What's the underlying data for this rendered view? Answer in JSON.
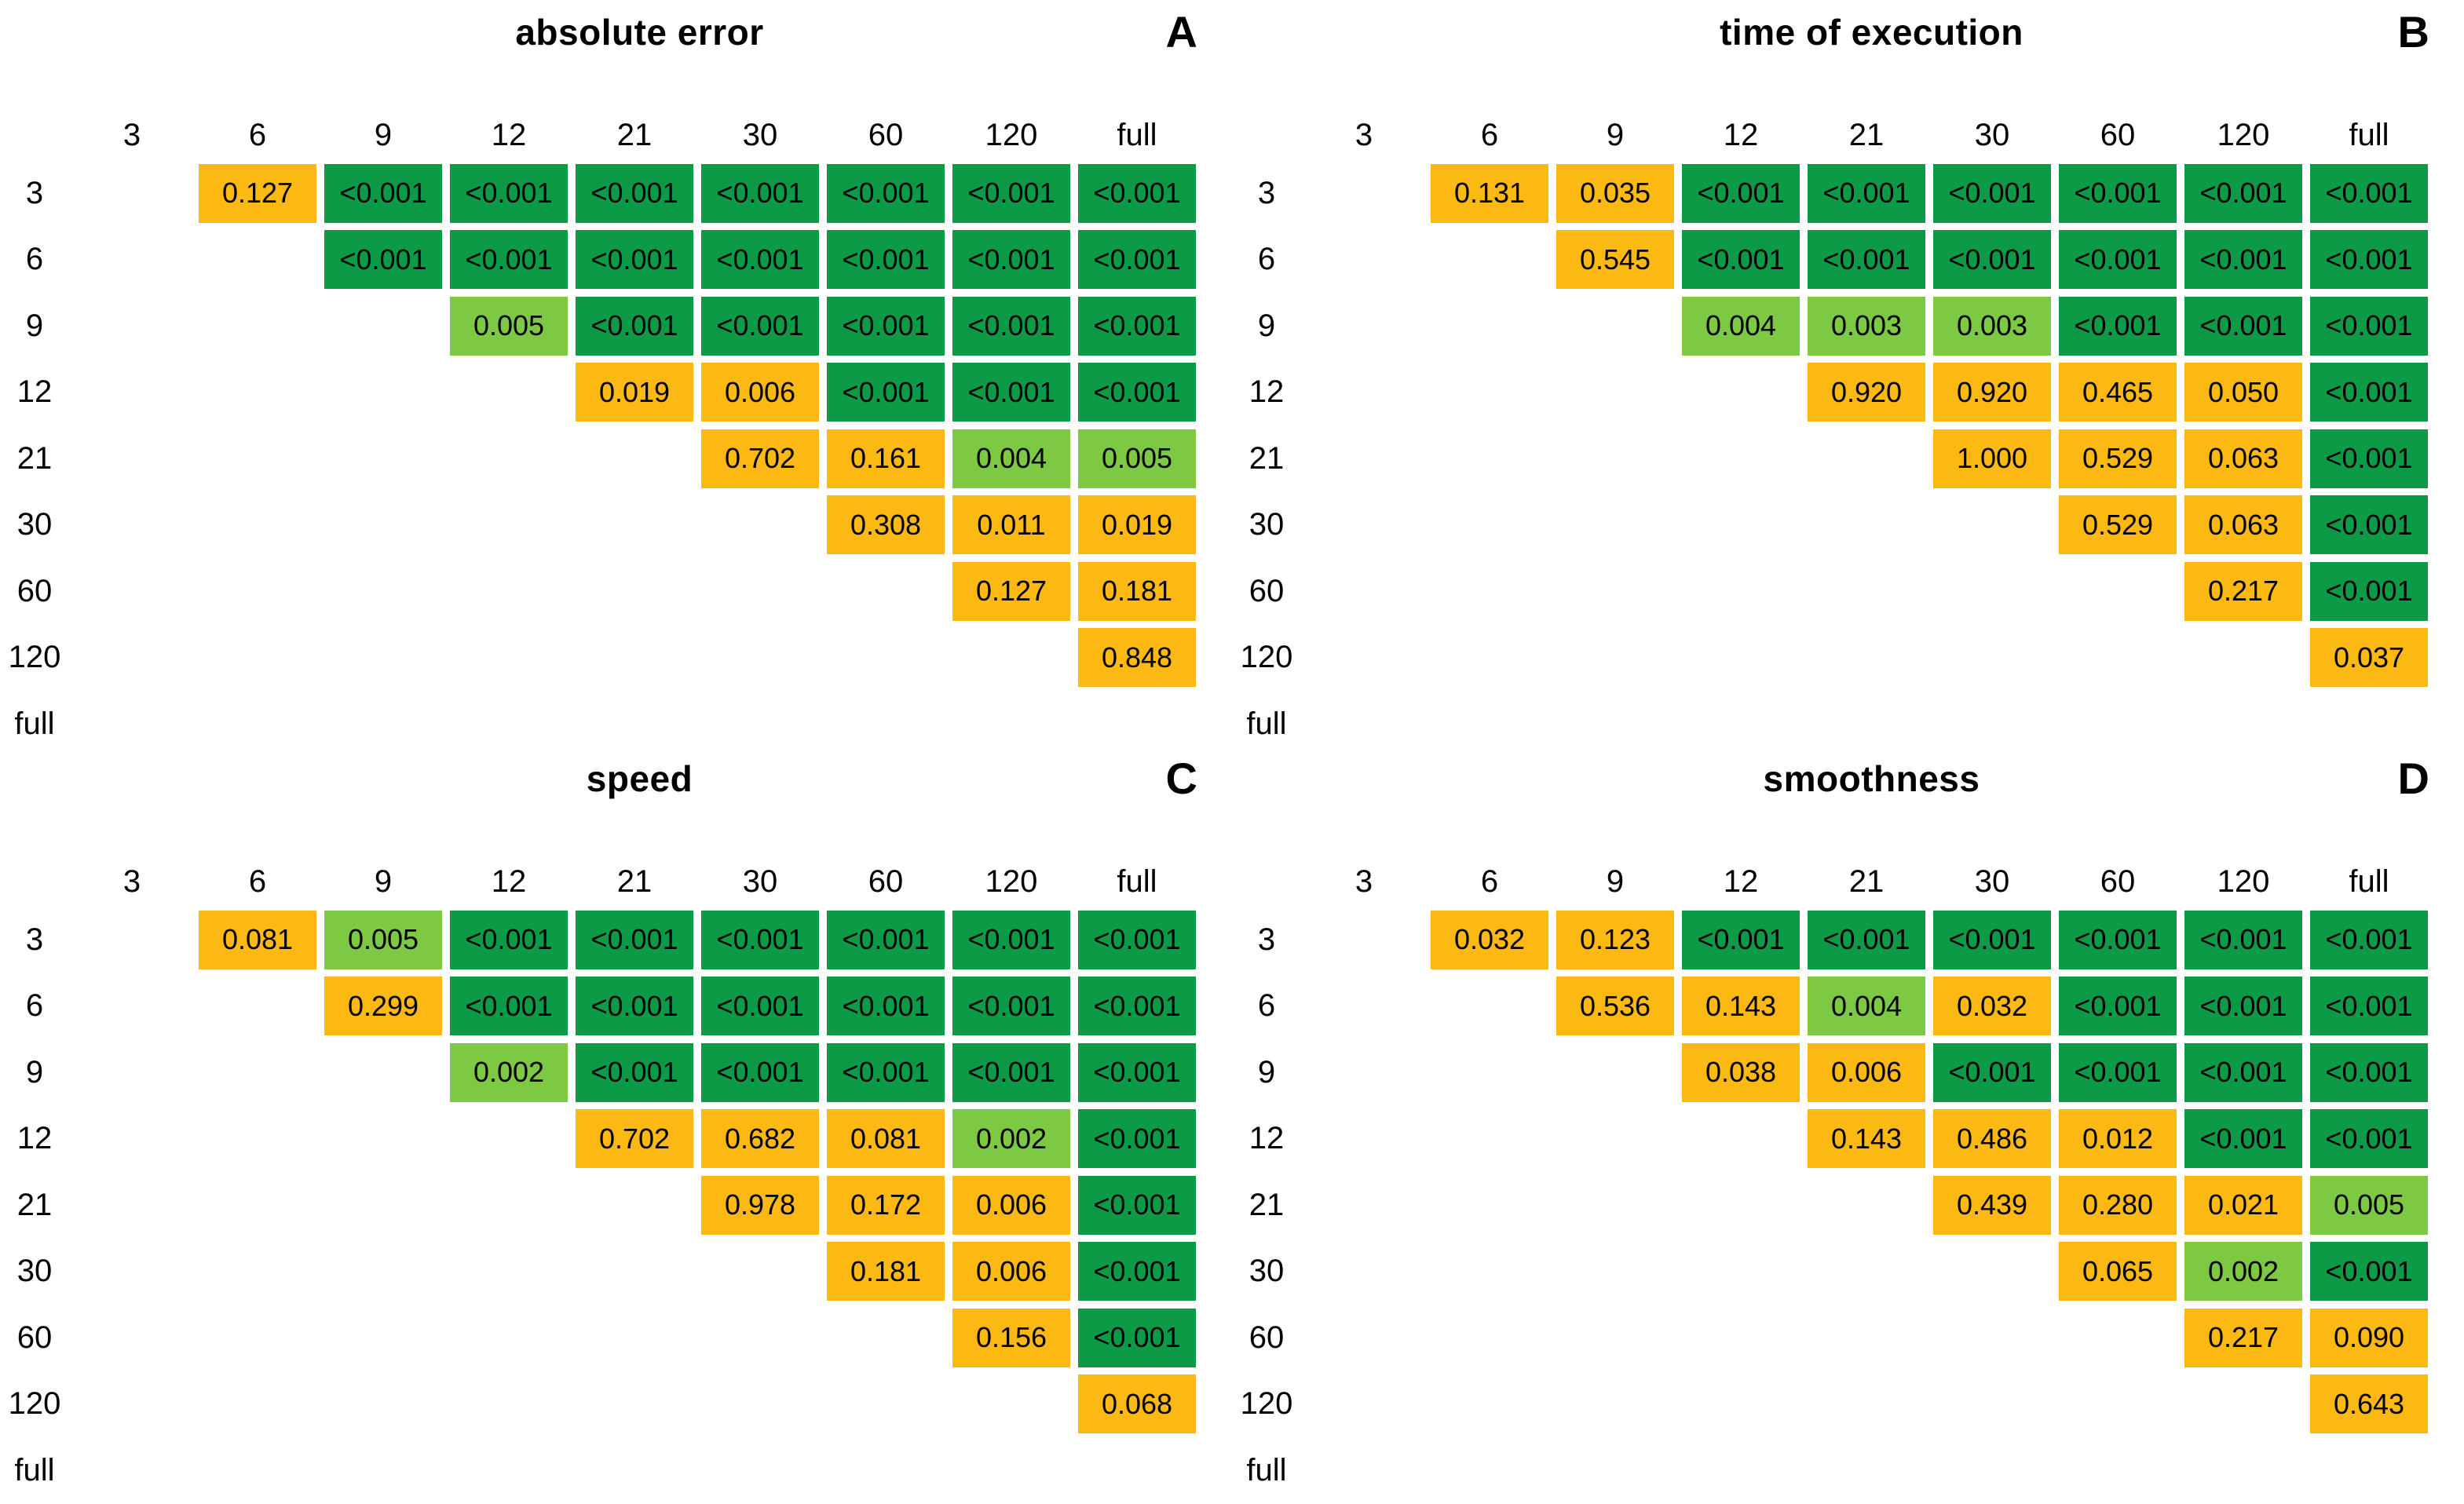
{
  "palette": {
    "d": "#0C9A47",
    "l": "#7DC943",
    "o": "#FCB813"
  },
  "chart_data": [
    {
      "type": "heatmap",
      "panel_letter": "A",
      "title": "absolute error",
      "categories": [
        "3",
        "6",
        "9",
        "12",
        "21",
        "30",
        "60",
        "120",
        "full"
      ],
      "rows": [
        {
          "label": "3",
          "p": [
            "0.127",
            "<0.001",
            "<0.001",
            "<0.001",
            "<0.001",
            "<0.001",
            "<0.001",
            "<0.001"
          ],
          "c": [
            "o",
            "d",
            "d",
            "d",
            "d",
            "d",
            "d",
            "d"
          ]
        },
        {
          "label": "6",
          "p": [
            "<0.001",
            "<0.001",
            "<0.001",
            "<0.001",
            "<0.001",
            "<0.001",
            "<0.001"
          ],
          "c": [
            "d",
            "d",
            "d",
            "d",
            "d",
            "d",
            "d"
          ]
        },
        {
          "label": "9",
          "p": [
            "0.005",
            "<0.001",
            "<0.001",
            "<0.001",
            "<0.001",
            "<0.001"
          ],
          "c": [
            "l",
            "d",
            "d",
            "d",
            "d",
            "d"
          ]
        },
        {
          "label": "12",
          "p": [
            "0.019",
            "0.006",
            "<0.001",
            "<0.001",
            "<0.001"
          ],
          "c": [
            "o",
            "o",
            "d",
            "d",
            "d"
          ]
        },
        {
          "label": "21",
          "p": [
            "0.702",
            "0.161",
            "0.004",
            "0.005"
          ],
          "c": [
            "o",
            "o",
            "l",
            "l"
          ]
        },
        {
          "label": "30",
          "p": [
            "0.308",
            "0.011",
            "0.019"
          ],
          "c": [
            "o",
            "o",
            "o"
          ]
        },
        {
          "label": "60",
          "p": [
            "0.127",
            "0.181"
          ],
          "c": [
            "o",
            "o"
          ]
        },
        {
          "label": "120",
          "p": [
            "0.848"
          ],
          "c": [
            "o"
          ]
        },
        {
          "label": "full",
          "p": [],
          "c": []
        }
      ]
    },
    {
      "type": "heatmap",
      "panel_letter": "B",
      "title": "time of execution",
      "categories": [
        "3",
        "6",
        "9",
        "12",
        "21",
        "30",
        "60",
        "120",
        "full"
      ],
      "rows": [
        {
          "label": "3",
          "p": [
            "0.131",
            "0.035",
            "<0.001",
            "<0.001",
            "<0.001",
            "<0.001",
            "<0.001",
            "<0.001"
          ],
          "c": [
            "o",
            "o",
            "d",
            "d",
            "d",
            "d",
            "d",
            "d"
          ]
        },
        {
          "label": "6",
          "p": [
            "0.545",
            "<0.001",
            "<0.001",
            "<0.001",
            "<0.001",
            "<0.001",
            "<0.001"
          ],
          "c": [
            "o",
            "d",
            "d",
            "d",
            "d",
            "d",
            "d"
          ]
        },
        {
          "label": "9",
          "p": [
            "0.004",
            "0.003",
            "0.003",
            "<0.001",
            "<0.001",
            "<0.001"
          ],
          "c": [
            "l",
            "l",
            "l",
            "d",
            "d",
            "d"
          ]
        },
        {
          "label": "12",
          "p": [
            "0.920",
            "0.920",
            "0.465",
            "0.050",
            "<0.001"
          ],
          "c": [
            "o",
            "o",
            "o",
            "o",
            "d"
          ]
        },
        {
          "label": "21",
          "p": [
            "1.000",
            "0.529",
            "0.063",
            "<0.001"
          ],
          "c": [
            "o",
            "o",
            "o",
            "d"
          ]
        },
        {
          "label": "30",
          "p": [
            "0.529",
            "0.063",
            "<0.001"
          ],
          "c": [
            "o",
            "o",
            "d"
          ]
        },
        {
          "label": "60",
          "p": [
            "0.217",
            "<0.001"
          ],
          "c": [
            "o",
            "d"
          ]
        },
        {
          "label": "120",
          "p": [
            "0.037"
          ],
          "c": [
            "o"
          ]
        },
        {
          "label": "full",
          "p": [],
          "c": []
        }
      ]
    },
    {
      "type": "heatmap",
      "panel_letter": "C",
      "title": "speed",
      "categories": [
        "3",
        "6",
        "9",
        "12",
        "21",
        "30",
        "60",
        "120",
        "full"
      ],
      "rows": [
        {
          "label": "3",
          "p": [
            "0.081",
            "0.005",
            "<0.001",
            "<0.001",
            "<0.001",
            "<0.001",
            "<0.001",
            "<0.001"
          ],
          "c": [
            "o",
            "l",
            "d",
            "d",
            "d",
            "d",
            "d",
            "d"
          ]
        },
        {
          "label": "6",
          "p": [
            "0.299",
            "<0.001",
            "<0.001",
            "<0.001",
            "<0.001",
            "<0.001",
            "<0.001"
          ],
          "c": [
            "o",
            "d",
            "d",
            "d",
            "d",
            "d",
            "d"
          ]
        },
        {
          "label": "9",
          "p": [
            "0.002",
            "<0.001",
            "<0.001",
            "<0.001",
            "<0.001",
            "<0.001"
          ],
          "c": [
            "l",
            "d",
            "d",
            "d",
            "d",
            "d"
          ]
        },
        {
          "label": "12",
          "p": [
            "0.702",
            "0.682",
            "0.081",
            "0.002",
            "<0.001"
          ],
          "c": [
            "o",
            "o",
            "o",
            "l",
            "d"
          ]
        },
        {
          "label": "21",
          "p": [
            "0.978",
            "0.172",
            "0.006",
            "<0.001"
          ],
          "c": [
            "o",
            "o",
            "o",
            "d"
          ]
        },
        {
          "label": "30",
          "p": [
            "0.181",
            "0.006",
            "<0.001"
          ],
          "c": [
            "o",
            "o",
            "d"
          ]
        },
        {
          "label": "60",
          "p": [
            "0.156",
            "<0.001"
          ],
          "c": [
            "o",
            "d"
          ]
        },
        {
          "label": "120",
          "p": [
            "0.068"
          ],
          "c": [
            "o"
          ]
        },
        {
          "label": "full",
          "p": [],
          "c": []
        }
      ]
    },
    {
      "type": "heatmap",
      "panel_letter": "D",
      "title": "smoothness",
      "categories": [
        "3",
        "6",
        "9",
        "12",
        "21",
        "30",
        "60",
        "120",
        "full"
      ],
      "rows": [
        {
          "label": "3",
          "p": [
            "0.032",
            "0.123",
            "<0.001",
            "<0.001",
            "<0.001",
            "<0.001",
            "<0.001",
            "<0.001"
          ],
          "c": [
            "o",
            "o",
            "d",
            "d",
            "d",
            "d",
            "d",
            "d"
          ]
        },
        {
          "label": "6",
          "p": [
            "0.536",
            "0.143",
            "0.004",
            "0.032",
            "<0.001",
            "<0.001",
            "<0.001"
          ],
          "c": [
            "o",
            "o",
            "l",
            "o",
            "d",
            "d",
            "d"
          ]
        },
        {
          "label": "9",
          "p": [
            "0.038",
            "0.006",
            "<0.001",
            "<0.001",
            "<0.001",
            "<0.001"
          ],
          "c": [
            "o",
            "o",
            "d",
            "d",
            "d",
            "d"
          ]
        },
        {
          "label": "12",
          "p": [
            "0.143",
            "0.486",
            "0.012",
            "<0.001",
            "<0.001"
          ],
          "c": [
            "o",
            "o",
            "o",
            "d",
            "d"
          ]
        },
        {
          "label": "21",
          "p": [
            "0.439",
            "0.280",
            "0.021",
            "0.005"
          ],
          "c": [
            "o",
            "o",
            "o",
            "l"
          ]
        },
        {
          "label": "30",
          "p": [
            "0.065",
            "0.002",
            "<0.001"
          ],
          "c": [
            "o",
            "l",
            "d"
          ]
        },
        {
          "label": "60",
          "p": [
            "0.217",
            "0.090"
          ],
          "c": [
            "o",
            "o"
          ]
        },
        {
          "label": "120",
          "p": [
            "0.643"
          ],
          "c": [
            "o"
          ]
        },
        {
          "label": "full",
          "p": [],
          "c": []
        }
      ]
    }
  ]
}
